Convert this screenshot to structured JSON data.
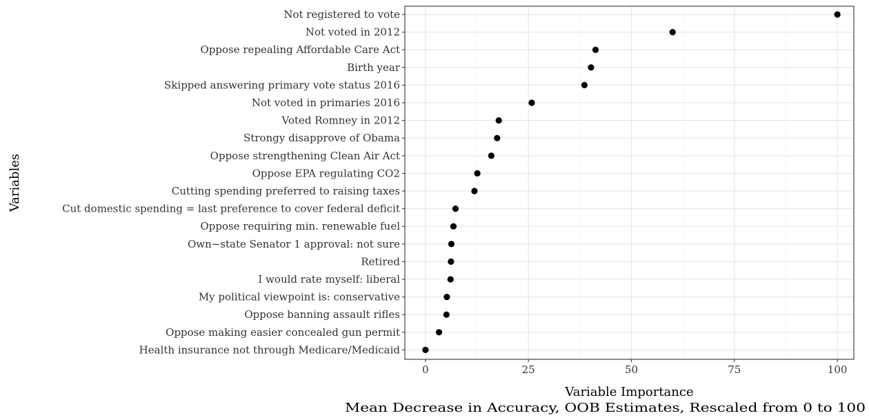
{
  "chart_data": {
    "type": "scatter",
    "title": "",
    "xlabel": "Variable Importance",
    "xlabel_sub": "Mean Decrease in Accuracy, OOB Estimates, Rescaled from 0 to 100",
    "ylabel": "Variables",
    "xlim": [
      -5,
      104
    ],
    "x_ticks": [
      0,
      25,
      50,
      75,
      100
    ],
    "grid": true,
    "categories": [
      "Not registered to vote",
      "Not voted in 2012",
      "Oppose repealing Affordable Care Act",
      "Birth year",
      "Skipped answering primary vote status 2016",
      "Not voted in primaries 2016",
      "Voted Romney in 2012",
      "Strongy disapprove of Obama",
      "Oppose strengthening Clean Air Act",
      "Oppose EPA regulating CO2",
      "Cutting spending preferred to raising taxes",
      "Cut domestic spending = last preference to cover federal deficit",
      "Oppose requiring min. renewable fuel",
      "Own−state Senator 1 approval: not sure",
      "Retired",
      "I would rate myself: liberal",
      "My political viewpoint is: conservative",
      "Oppose banning assault rifles",
      "Oppose making easier concealed gun permit",
      "Health insurance not through Medicare/Medicaid"
    ],
    "values": [
      100,
      60,
      41.3,
      40.2,
      38.6,
      25.8,
      17.8,
      17.4,
      16.0,
      12.6,
      11.9,
      7.3,
      6.8,
      6.3,
      6.2,
      6.1,
      5.2,
      5.1,
      3.3,
      0
    ]
  }
}
